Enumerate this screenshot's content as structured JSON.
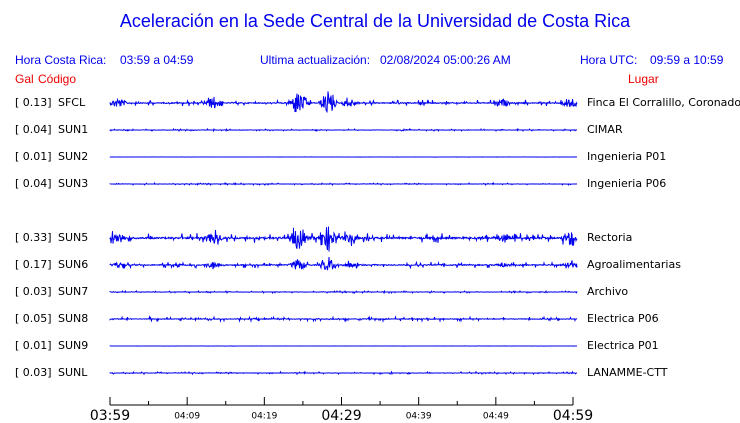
{
  "header": {
    "title": "Aceleración en la Sede Central de la Universidad de Costa Rica",
    "local_label": "Hora Costa Rica:",
    "local_range": "03:59 a 04:59",
    "update_label": "Ultima actualización:",
    "update_time": "02/08/2024 05:00:26 AM",
    "utc_label": "Hora UTC:",
    "utc_range": "09:59 a 10:59",
    "gal_heading": "Gal",
    "code_heading": "Código",
    "place_heading": "Lugar"
  },
  "stations": [
    {
      "gal": "[  0.13]",
      "code": "SFCL",
      "place": "Finca El Corralillo, Coronado"
    },
    {
      "gal": "[  0.04]",
      "code": "SUN1",
      "place": "CIMAR"
    },
    {
      "gal": "[  0.01]",
      "code": "SUN2",
      "place": "Ingenieria P01"
    },
    {
      "gal": "[  0.04]",
      "code": "SUN3",
      "place": "Ingenieria P06"
    },
    {
      "gal": "[  0.33]",
      "code": "SUN5",
      "place": "Rectoria"
    },
    {
      "gal": "[  0.17]",
      "code": "SUN6",
      "place": "Agroalimentarias"
    },
    {
      "gal": "[  0.03]",
      "code": "SUN7",
      "place": "Archivo"
    },
    {
      "gal": "[  0.05]",
      "code": "SUN8",
      "place": "Electrica P06"
    },
    {
      "gal": "[  0.01]",
      "code": "SUN9",
      "place": "Electrica P01"
    },
    {
      "gal": "[  0.03]",
      "code": "SUNL",
      "place": "LANAMME-CTT"
    }
  ],
  "time_axis": [
    "03:59",
    "04:09",
    "04:19",
    "04:29",
    "04:39",
    "04:49",
    "04:59"
  ]
}
